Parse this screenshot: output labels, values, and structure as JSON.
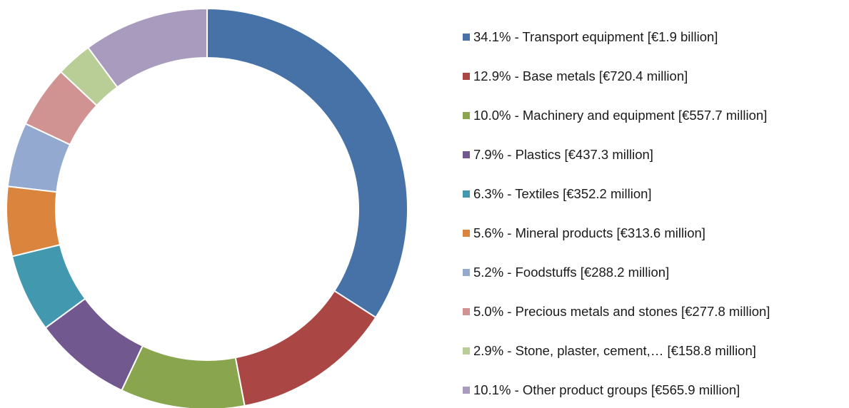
{
  "chart_data": {
    "type": "donut",
    "categories": [
      "34.1% - Transport equipment [€1.9 billion]",
      "12.9% - Base metals [€720.4 million]",
      "10.0% - Machinery and equipment [€557.7 million]",
      "7.9% - Plastics [€437.3 million]",
      "6.3% - Textiles [€352.2 million]",
      "5.6% - Mineral products [€313.6 million]",
      "5.2% - Foodstuffs [€288.2 million]",
      "5.0% - Precious metals and stones [€277.8 million]",
      "2.9% - Stone, plaster, cement,… [€158.8 million]",
      "10.1% - Other product groups [€565.9 million]"
    ],
    "values": [
      34.1,
      12.9,
      10.0,
      7.9,
      6.3,
      5.6,
      5.2,
      5.0,
      2.9,
      10.1
    ],
    "colors": [
      "#4672a8",
      "#aa4643",
      "#89a54e",
      "#71588f",
      "#4198af",
      "#db843d",
      "#93a9cf",
      "#d19392",
      "#b9cd96",
      "#a99bbd"
    ],
    "legend": "right"
  }
}
